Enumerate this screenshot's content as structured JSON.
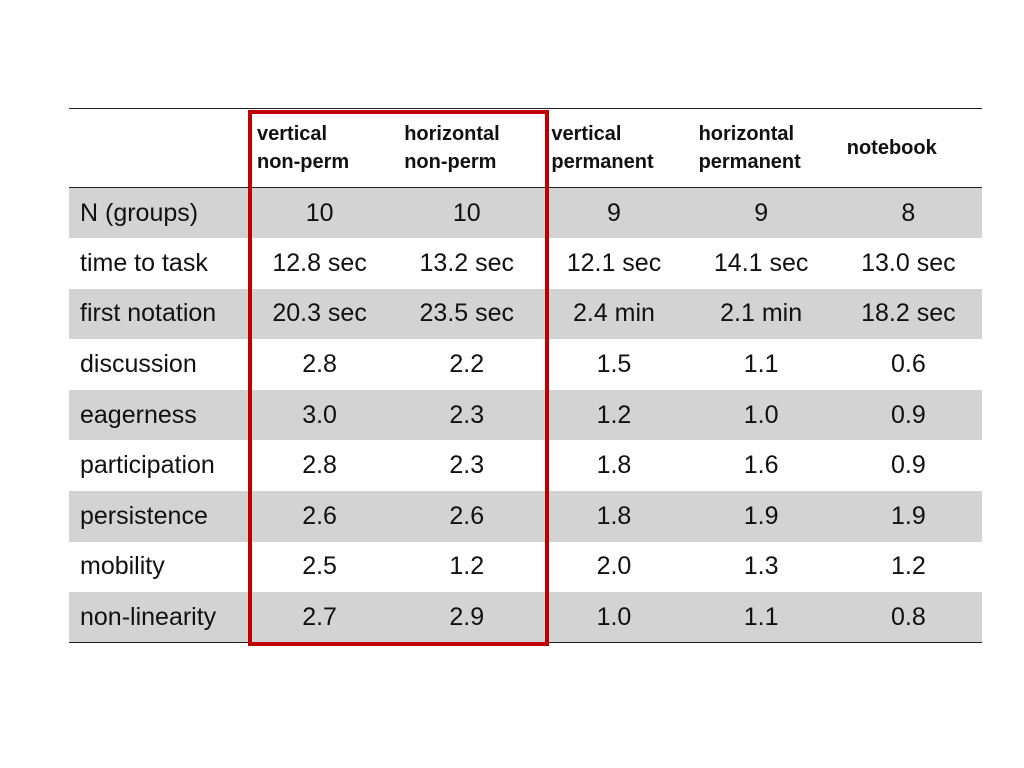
{
  "table": {
    "columns": [
      {
        "line1": "",
        "line2": ""
      },
      {
        "line1": "vertical",
        "line2": "non-perm"
      },
      {
        "line1": "horizontal",
        "line2": "non-perm"
      },
      {
        "line1": "vertical",
        "line2": "permanent"
      },
      {
        "line1": "horizontal",
        "line2": "permanent"
      },
      {
        "line1": "notebook",
        "line2": ""
      }
    ],
    "rows": [
      {
        "label": "N (groups)",
        "values": [
          "10",
          "10",
          "9",
          "9",
          "8"
        ]
      },
      {
        "label": "time to task",
        "values": [
          "12.8 sec",
          "13.2 sec",
          "12.1 sec",
          "14.1 sec",
          "13.0 sec"
        ]
      },
      {
        "label": "first notation",
        "values": [
          "20.3 sec",
          "23.5 sec",
          "2.4 min",
          "2.1 min",
          "18.2 sec"
        ]
      },
      {
        "label": "discussion",
        "values": [
          "2.8",
          "2.2",
          "1.5",
          "1.1",
          "0.6"
        ]
      },
      {
        "label": "eagerness",
        "values": [
          "3.0",
          "2.3",
          "1.2",
          "1.0",
          "0.9"
        ]
      },
      {
        "label": "participation",
        "values": [
          "2.8",
          "2.3",
          "1.8",
          "1.6",
          "0.9"
        ]
      },
      {
        "label": "persistence",
        "values": [
          "2.6",
          "2.6",
          "1.8",
          "1.9",
          "1.9"
        ]
      },
      {
        "label": "mobility",
        "values": [
          "2.5",
          "1.2",
          "2.0",
          "1.3",
          "1.2"
        ]
      },
      {
        "label": "non-linearity",
        "values": [
          "2.7",
          "2.9",
          "1.0",
          "1.1",
          "0.8"
        ]
      }
    ],
    "highlight": {
      "columns": [
        1,
        2
      ],
      "color": "#c00000"
    },
    "shaded_row_color": "#d3d3d3"
  }
}
